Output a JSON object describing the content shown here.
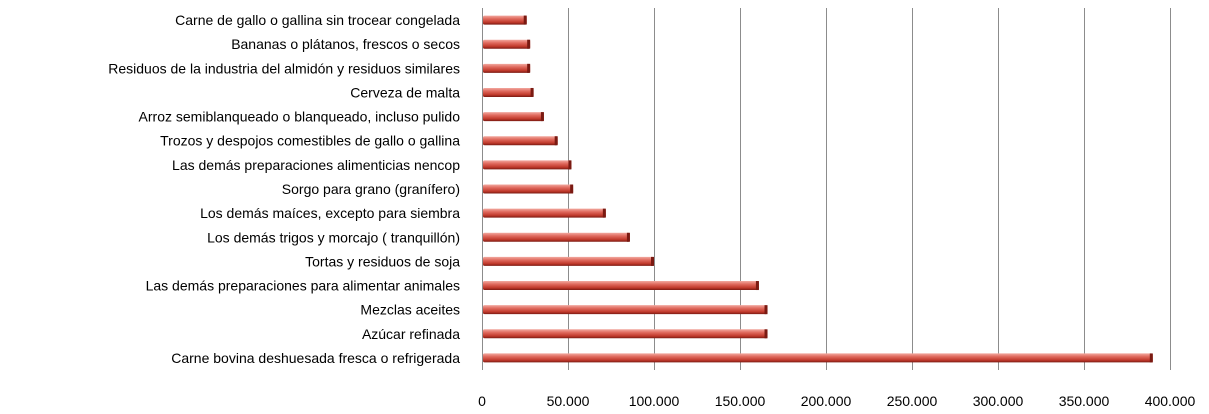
{
  "chart_data": {
    "type": "bar",
    "orientation": "horizontal",
    "categories": [
      "Carne bovina deshuesada fresca o refrigerada",
      "Azúcar refinada",
      "Mezclas aceites",
      "Las demás preparaciones para alimentar animales",
      "Tortas y residuos de soja",
      "Los demás trigos y morcajo ( tranquillón)",
      "Los demás maíces, excepto para siembra",
      "Sorgo para grano (granífero)",
      "Las demás preparaciones alimenticias nencop",
      "Trozos y despojos comestibles de gallo o gallina",
      "Arroz semiblanqueado o blanqueado, incluso pulido",
      "Cerveza de malta",
      "Residuos de la industria del almidón y residuos similares",
      "Bananas o plátanos, frescos o secos",
      "Carne de gallo o gallina sin trocear congelada"
    ],
    "values": [
      390000,
      166000,
      166000,
      161000,
      100000,
      86000,
      72000,
      53000,
      52000,
      44000,
      36000,
      30000,
      28000,
      28000,
      26000
    ],
    "xlim": [
      0,
      400000
    ],
    "xticks": [
      0,
      50000,
      100000,
      150000,
      200000,
      250000,
      300000,
      350000,
      400000
    ],
    "xtick_labels": [
      "0",
      "50.000",
      "100.000",
      "150.000",
      "200.000",
      "250.000",
      "300.000",
      "350.000",
      "400.000"
    ],
    "title": "",
    "xlabel": "",
    "ylabel": "",
    "grid": "vertical",
    "legend": "none",
    "bar_color": "#c0392b",
    "bar_highlight": "#f2a9a0",
    "bar_shadow": "#7a1a12"
  }
}
